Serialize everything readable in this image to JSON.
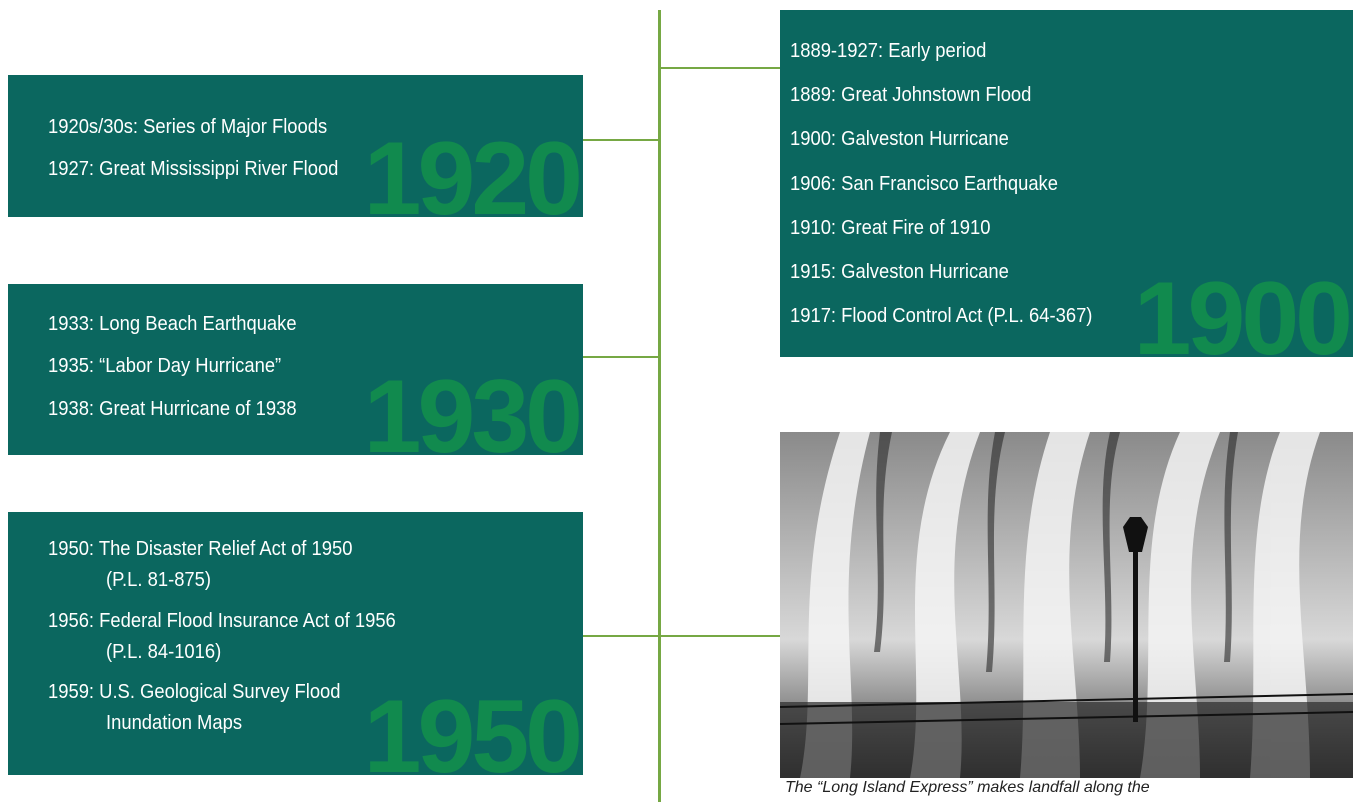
{
  "boxes": [
    {
      "year": "1920",
      "items": [
        "1920s/30s: Series of Major Floods",
        "1927: Great Mississippi River Flood"
      ]
    },
    {
      "year": "1930",
      "items": [
        "1933: Long Beach Earthquake",
        "1935: “Labor Day Hurricane”",
        "1938: Great Hurricane of 1938"
      ]
    },
    {
      "year": "1950",
      "items": [
        "1950: The Disaster Relief Act of 1950",
        "(P.L. 81-875)",
        "1956: Federal Flood Insurance Act of 1956",
        "(P.L. 84-1016)",
        "1959: U.S. Geological Survey Flood",
        "Inundation Maps"
      ]
    },
    {
      "year": "1900",
      "items": [
        "1889-1927:  Early period",
        "1889: Great Johnstown Flood",
        "1900: Galveston Hurricane",
        "1906: San Francisco Earthquake",
        "1910: Great Fire of 1910",
        "1915: Galveston Hurricane",
        "1917: Flood Control Act (P.L. 64-367)"
      ]
    }
  ],
  "photo": {
    "caption": "The “Long Island Express” makes landfall along the"
  }
}
